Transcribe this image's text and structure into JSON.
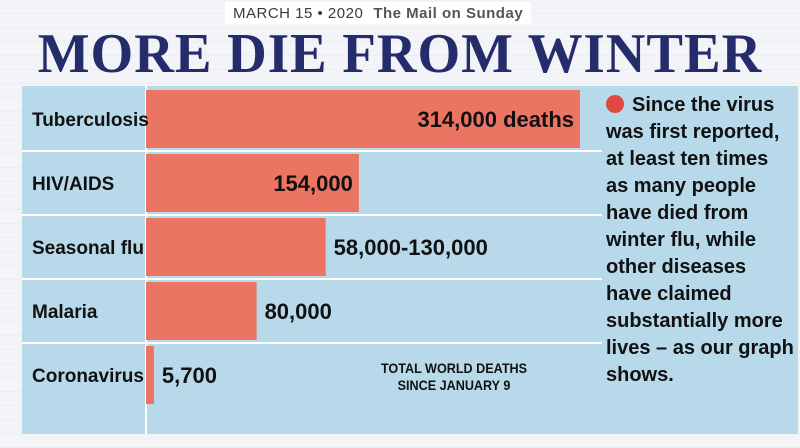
{
  "header": {
    "date": "MARCH 15 • 2020",
    "paper": "The Mail on Sunday",
    "headline": "MORE DIE FROM WINTER FLU"
  },
  "side_text": "Since the virus was first reported, at least ten times as many people have died from winter flu, while other diseases have claimed substantially more lives – as our graph shows.",
  "note": {
    "line1": "TOTAL WORLD DEATHS",
    "line2": "SINCE JANUARY 9"
  },
  "colors": {
    "bar": "#ec7462",
    "panel": "#b7d9ea",
    "headline": "#242c6c"
  },
  "chart_data": {
    "type": "bar",
    "orientation": "horizontal",
    "title": "MORE DIE FROM WINTER FLU",
    "categories": [
      "Tuberculosis",
      "HIV/AIDS",
      "Seasonal flu",
      "Malaria",
      "Coronavirus"
    ],
    "values": [
      314000,
      154000,
      130000,
      80000,
      5700
    ],
    "value_low": [
      314000,
      154000,
      58000,
      80000,
      5700
    ],
    "labels": [
      "314,000 deaths",
      "154,000",
      "58,000-130,000",
      "80,000",
      "5,700"
    ],
    "ylim": [
      0,
      314000
    ],
    "grid": true
  }
}
